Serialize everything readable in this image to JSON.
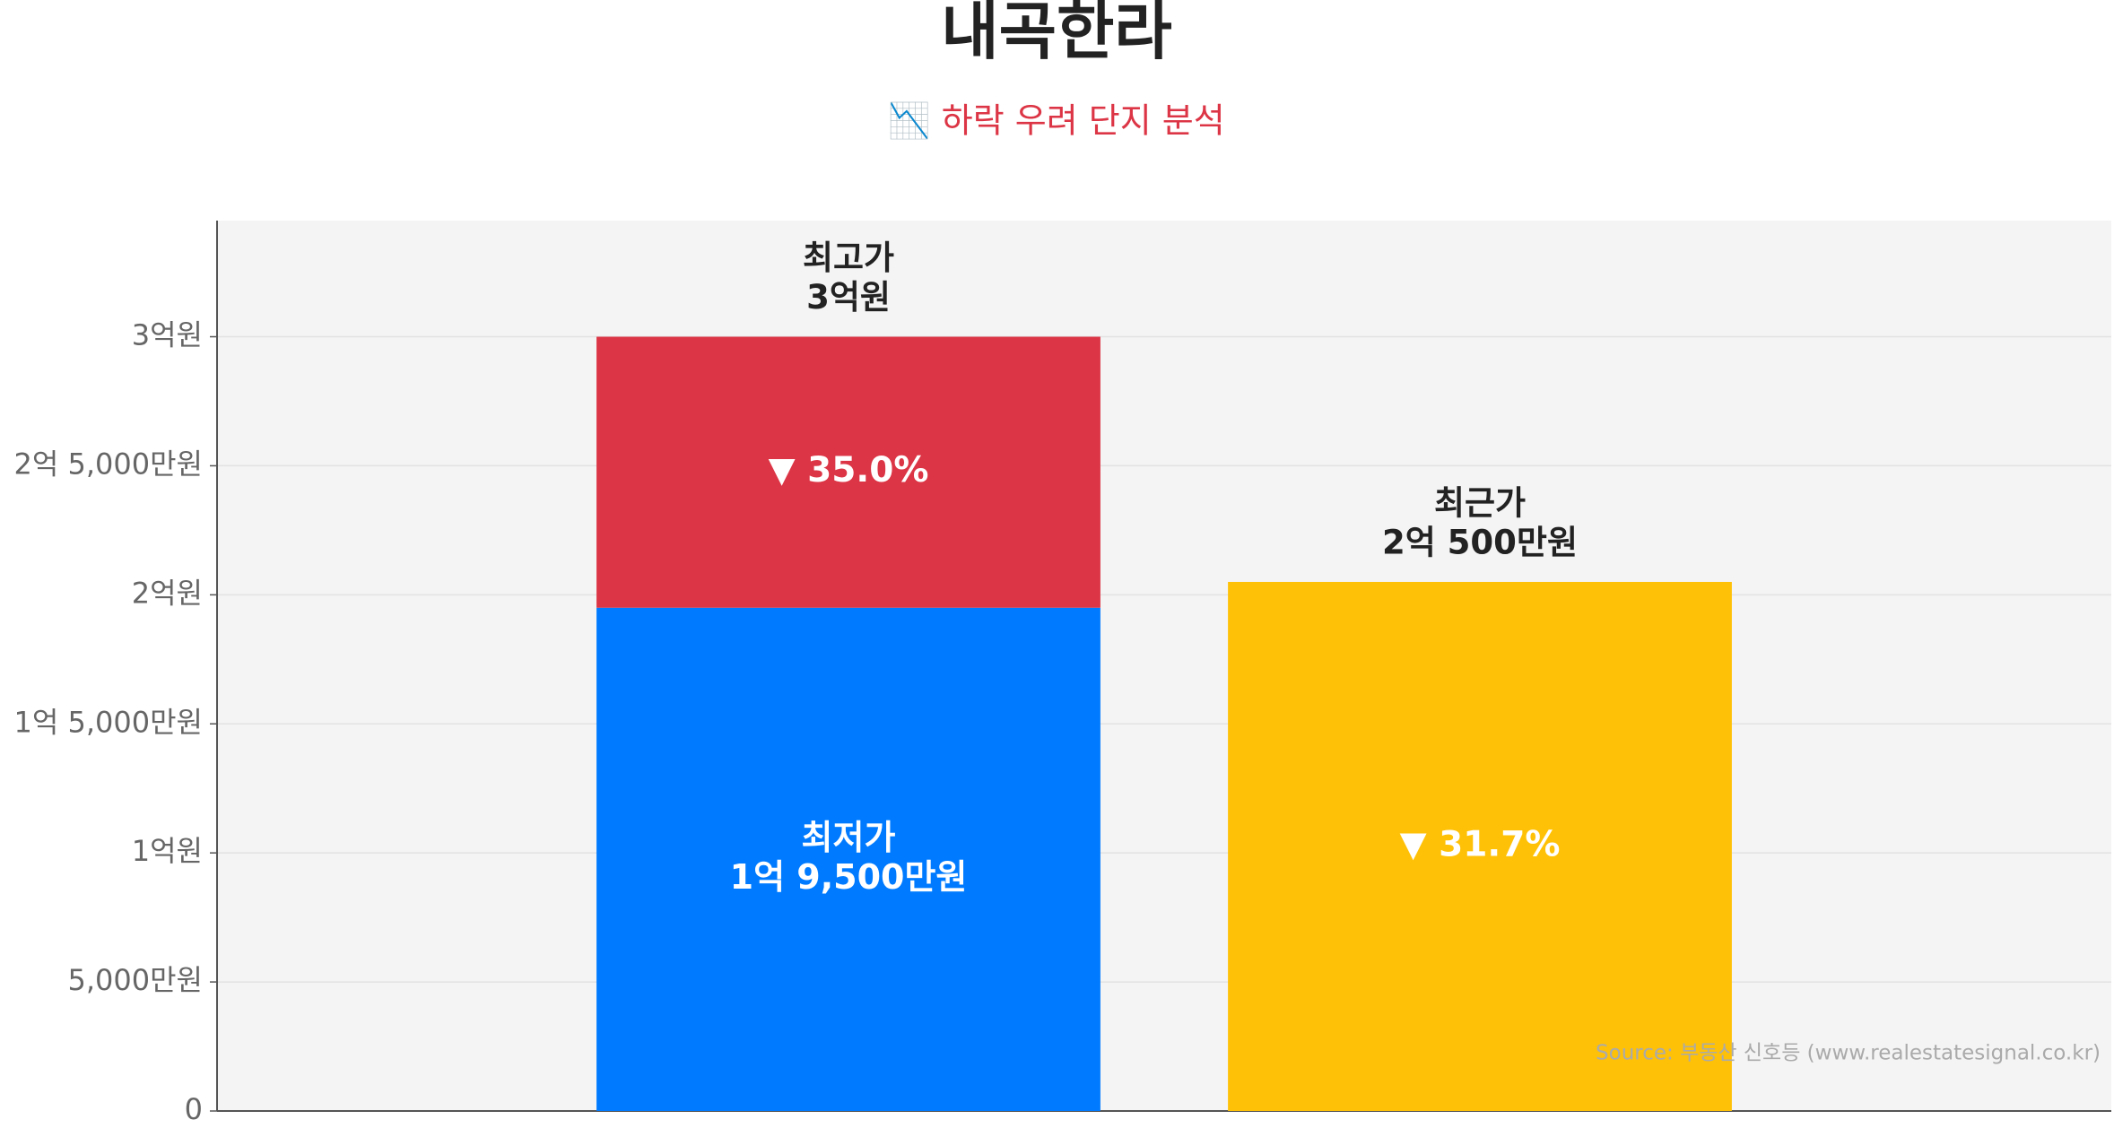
{
  "chart_data": {
    "type": "bar",
    "title": "내곡한라",
    "subtitle": "📉 하락 우려 단지 분석",
    "source": "Source: 부동산 신호등 (www.realestatesignal.co.kr)",
    "categories": [
      null,
      null
    ],
    "series": [
      {
        "name": "최저가",
        "color": "#007bff",
        "values": [
          19500,
          null
        ],
        "value_labels": [
          "1억 9,500만원",
          null
        ]
      },
      {
        "name": "최고가",
        "color": "#dc3545",
        "values": [
          10500,
          null
        ],
        "drops": [
          35.0,
          null
        ],
        "drop_labels": [
          "▼ 35.0%",
          null
        ]
      },
      {
        "name": "최근가",
        "color": "#ffc107",
        "values": [
          null,
          20500
        ],
        "value_labels": [
          null,
          "2억 500만원"
        ],
        "drops": [
          null,
          31.7
        ],
        "drop_labels": [
          null,
          "▼ 31.7%"
        ]
      }
    ],
    "totals": [
      30000,
      null
    ],
    "total_labels": [
      "3억원",
      null
    ],
    "ylim": [
      0,
      34500
    ],
    "yticks": [
      0,
      {
        "value": 5000,
        "label": "5,000만원"
      },
      {
        "value": 10000,
        "label": "1억원"
      },
      {
        "value": 15000,
        "label": "1억 5,000만원"
      },
      {
        "value": 20000,
        "label": "2억원"
      },
      {
        "value": 25000,
        "label": "2억 5,000만원"
      },
      {
        "value": 30000,
        "label": "3억원"
      }
    ],
    "grid": true
  }
}
